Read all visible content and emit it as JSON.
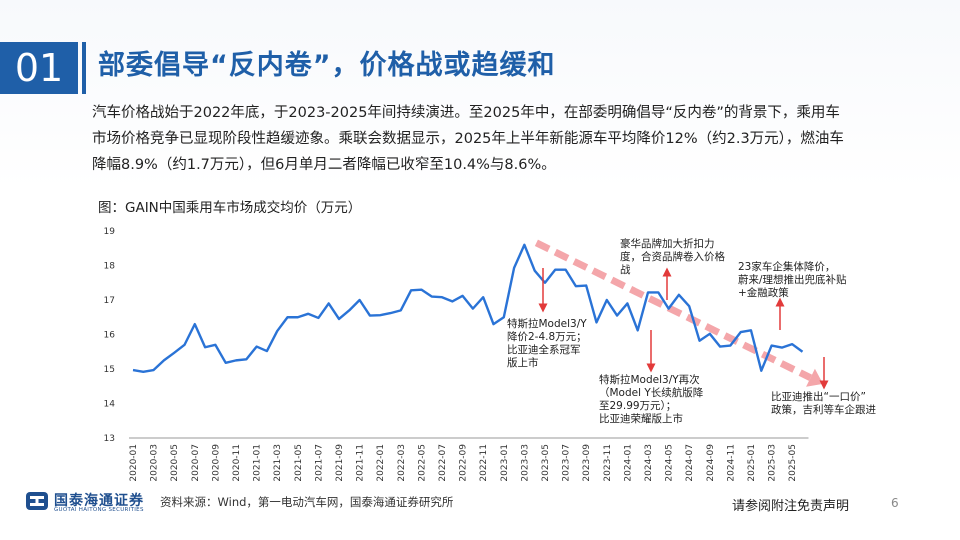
{
  "header": {
    "section_number": "01",
    "title": "部委倡导“反内卷”，价格战或趋缓和"
  },
  "body_text": "汽车价格战始于2022年底，于2023-2025年间持续演进。至2025年中，在部委明确倡导“反内卷”的背景下，乘用车市场价格竞争已显现阶段性趋缓迹象。乘联会数据显示，2025年上半年新能源车平均降价12%（约2.3万元），燃油车降幅8.9%（约1.7万元），但6月单月二者降幅已收窄至10.4%与8.6%。",
  "figure_title": "图：GAIN中国乘用车市场成交均价（万元）",
  "chart_data": {
    "type": "line",
    "title": "GAIN中国乘用车市场成交均价（万元）",
    "ylim": [
      13,
      19
    ],
    "yticks": [
      13,
      14,
      15,
      16,
      17,
      18,
      19
    ],
    "x_tick_labels": [
      "2020-01",
      "2020-03",
      "2020-05",
      "2020-07",
      "2020-09",
      "2020-11",
      "2021-01",
      "2021-03",
      "2021-05",
      "2021-07",
      "2021-09",
      "2021-11",
      "2022-01",
      "2022-03",
      "2022-05",
      "2022-07",
      "2022-09",
      "2022-11",
      "2023-01",
      "2023-03",
      "2023-05",
      "2023-07",
      "2023-09",
      "2023-11",
      "2024-01",
      "2024-03",
      "2024-05",
      "2024-07",
      "2024-09",
      "2024-11",
      "2025-01",
      "2025-03",
      "2025-05"
    ],
    "x": [
      "2020-01",
      "2020-02",
      "2020-03",
      "2020-04",
      "2020-05",
      "2020-06",
      "2020-07",
      "2020-08",
      "2020-09",
      "2020-10",
      "2020-11",
      "2020-12",
      "2021-01",
      "2021-02",
      "2021-03",
      "2021-04",
      "2021-05",
      "2021-06",
      "2021-07",
      "2021-08",
      "2021-09",
      "2021-10",
      "2021-11",
      "2021-12",
      "2022-01",
      "2022-02",
      "2022-03",
      "2022-04",
      "2022-05",
      "2022-06",
      "2022-07",
      "2022-08",
      "2022-09",
      "2022-10",
      "2022-11",
      "2022-12",
      "2023-01",
      "2023-02",
      "2023-03",
      "2023-04",
      "2023-05",
      "2023-06",
      "2023-07",
      "2023-08",
      "2023-09",
      "2023-10",
      "2023-11",
      "2023-12",
      "2024-01",
      "2024-02",
      "2024-03",
      "2024-04",
      "2024-05",
      "2024-06",
      "2024-07",
      "2024-08",
      "2024-09",
      "2024-10",
      "2024-11",
      "2024-12",
      "2025-01",
      "2025-02",
      "2025-03",
      "2025-04",
      "2025-05",
      "2025-06"
    ],
    "values": [
      14.97,
      14.92,
      14.97,
      15.25,
      15.47,
      15.7,
      16.3,
      15.63,
      15.7,
      15.18,
      15.25,
      15.28,
      15.65,
      15.52,
      16.1,
      16.5,
      16.5,
      16.6,
      16.48,
      16.9,
      16.45,
      16.7,
      17.0,
      16.55,
      16.56,
      16.62,
      16.7,
      17.28,
      17.3,
      17.1,
      17.08,
      16.96,
      17.12,
      16.75,
      17.08,
      16.3,
      16.5,
      17.93,
      18.6,
      17.85,
      17.5,
      17.88,
      17.88,
      17.4,
      17.42,
      16.35,
      17.0,
      16.55,
      16.9,
      16.12,
      17.22,
      17.22,
      16.75,
      17.15,
      16.82,
      15.82,
      16.02,
      15.65,
      15.68,
      16.07,
      16.12,
      14.95,
      15.68,
      15.62,
      15.72,
      15.5
    ],
    "annotations": [
      {
        "lines": [
          "特斯拉Model3/Y",
          "降价2-4.8万元；",
          "比亚迪全系冠军",
          "版上市"
        ],
        "at": "2023-03",
        "arrow": "down"
      },
      {
        "lines": [
          "豪华品牌加大折扣力",
          "度，合资品牌卷入价格",
          "战"
        ],
        "at": "2023-12",
        "arrow": "up"
      },
      {
        "lines": [
          "特斯拉Model3/Y再次",
          "（Model Y长续航版降",
          "至29.99万元）；",
          "比亚迪荣耀版上市"
        ],
        "at": "2024-01",
        "arrow": "down"
      },
      {
        "lines": [
          "23家车企集体降价，",
          "蔚来/理想推出兜底补贴",
          "+金融政策"
        ],
        "at": "2024-12",
        "arrow": "up"
      },
      {
        "lines": [
          "比亚迪推出“一口价”",
          "政策，吉利等车企跟进"
        ],
        "at": "2025-03",
        "arrow": "down"
      }
    ],
    "trend_arrow": {
      "style": "dashed",
      "from": "2023-03",
      "to": "2025-06"
    },
    "grid": false,
    "legend": "none"
  },
  "colors": {
    "brand_blue": "#1f5fa8",
    "series_line": "#2a73d6",
    "annotation_arrow": "#e23a3a",
    "trend_arrow": "#f4a6aa"
  },
  "footer": {
    "logo_cn": "国泰海通证券",
    "logo_en": "GUOTAI HAITONG SECURITIES",
    "source": "资料来源：Wind，第一电动汽车网，国泰海通证券研究所",
    "disclaimer": "请参阅附注免责声明",
    "page_number": "6"
  }
}
